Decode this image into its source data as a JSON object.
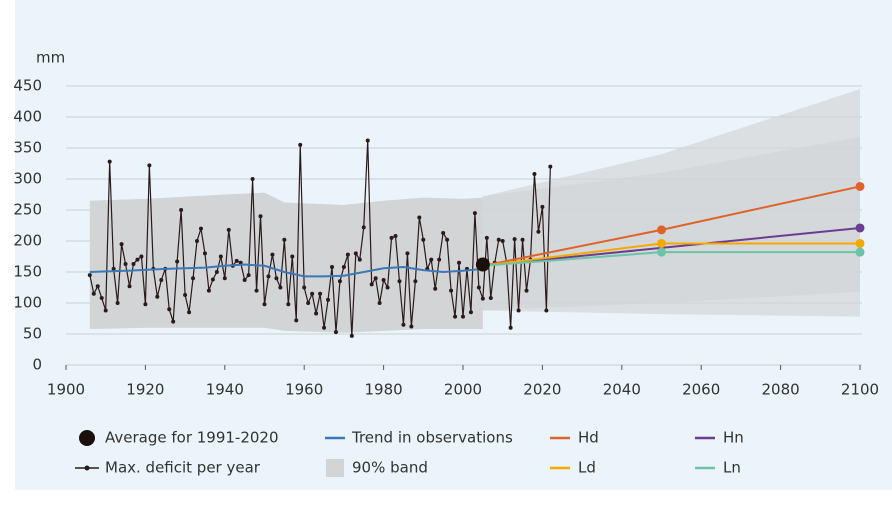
{
  "chart_data": {
    "type": "line",
    "y_label": "mm",
    "xlim": [
      1900,
      2100
    ],
    "xticks": [
      1900,
      1920,
      1940,
      1960,
      1980,
      2000,
      2020,
      2040,
      2060,
      2080,
      2100
    ],
    "ylim": [
      0,
      450
    ],
    "yticks": [
      0,
      50,
      100,
      150,
      200,
      250,
      300,
      350,
      400,
      450
    ],
    "grid": true,
    "band": {
      "name": "90% band",
      "color": "#d2d4d6",
      "pieces": [
        {
          "x": [
            1906,
            1920,
            1940,
            1950,
            1955,
            1970,
            1980,
            1990,
            2000,
            2005
          ],
          "lower": [
            58,
            60,
            60,
            60,
            55,
            52,
            55,
            58,
            58,
            58
          ],
          "upper": [
            265,
            268,
            275,
            278,
            262,
            258,
            265,
            270,
            268,
            270
          ]
        },
        {
          "x": [
            2005,
            2050,
            2100
          ],
          "lower": [
            88,
            82,
            78
          ],
          "upper": [
            272,
            340,
            445
          ]
        },
        {
          "x": [
            2005,
            2050,
            2100
          ],
          "lower": [
            88,
            100,
            118
          ],
          "upper": [
            272,
            310,
            368
          ]
        }
      ]
    },
    "series": [
      {
        "name": "Max. deficit per year",
        "color": "#2a1a1a",
        "markers": "all",
        "x": [
          1906,
          1907,
          1908,
          1909,
          1910,
          1911,
          1912,
          1913,
          1914,
          1915,
          1916,
          1917,
          1918,
          1919,
          1920,
          1921,
          1922,
          1923,
          1924,
          1925,
          1926,
          1927,
          1928,
          1929,
          1930,
          1931,
          1932,
          1933,
          1934,
          1935,
          1936,
          1937,
          1938,
          1939,
          1940,
          1941,
          1942,
          1943,
          1944,
          1945,
          1946,
          1947,
          1948,
          1949,
          1950,
          1951,
          1952,
          1953,
          1954,
          1955,
          1956,
          1957,
          1958,
          1959,
          1960,
          1961,
          1962,
          1963,
          1964,
          1965,
          1966,
          1967,
          1968,
          1969,
          1970,
          1971,
          1972,
          1973,
          1974,
          1975,
          1976,
          1977,
          1978,
          1979,
          1980,
          1981,
          1982,
          1983,
          1984,
          1985,
          1986,
          1987,
          1988,
          1989,
          1990,
          1991,
          1992,
          1993,
          1994,
          1995,
          1996,
          1997,
          1998,
          1999,
          2000,
          2001,
          2002,
          2003,
          2004,
          2005,
          2006,
          2007,
          2008,
          2009,
          2010,
          2011,
          2012,
          2013,
          2014,
          2015,
          2016,
          2017,
          2018,
          2019,
          2020,
          2021,
          2022
        ],
        "values": [
          145,
          115,
          127,
          108,
          88,
          328,
          155,
          100,
          195,
          163,
          127,
          163,
          170,
          175,
          98,
          322,
          155,
          110,
          137,
          155,
          90,
          70,
          167,
          250,
          113,
          85,
          140,
          200,
          220,
          180,
          120,
          138,
          150,
          175,
          140,
          218,
          160,
          168,
          165,
          137,
          145,
          300,
          120,
          240,
          98,
          143,
          178,
          140,
          125,
          202,
          98,
          175,
          72,
          355,
          125,
          100,
          115,
          83,
          115,
          60,
          105,
          158,
          53,
          135,
          158,
          178,
          47,
          180,
          170,
          222,
          362,
          130,
          140,
          100,
          137,
          125,
          205,
          208,
          135,
          65,
          180,
          62,
          135,
          238,
          202,
          155,
          170,
          123,
          170,
          213,
          202,
          120,
          78,
          165,
          78,
          155,
          85,
          245,
          125,
          107,
          205,
          108,
          165,
          202,
          200,
          165,
          60,
          203,
          88,
          202,
          120,
          170,
          308,
          215,
          255,
          88,
          320
        ]
      },
      {
        "name": "Trend in observations",
        "color": "#3b78b6",
        "markers": "none",
        "x": [
          1906,
          1915,
          1925,
          1935,
          1940,
          1945,
          1950,
          1955,
          1960,
          1965,
          1970,
          1975,
          1980,
          1985,
          1990,
          1995,
          2000,
          2005
        ],
        "values": [
          150,
          152,
          155,
          157,
          160,
          162,
          160,
          150,
          143,
          143,
          144,
          150,
          156,
          158,
          153,
          150,
          152,
          155
        ]
      },
      {
        "name": "Hd",
        "color": "#e0622a",
        "markers": "end",
        "x": [
          2005,
          2050,
          2100
        ],
        "values": [
          160,
          218,
          288
        ]
      },
      {
        "name": "Hn",
        "color": "#6b3d90",
        "markers": "end",
        "x": [
          2005,
          2100
        ],
        "values": [
          160,
          221
        ]
      },
      {
        "name": "Ld",
        "color": "#f5a800",
        "markers": "end",
        "x": [
          2005,
          2050,
          2100
        ],
        "values": [
          160,
          196,
          196
        ]
      },
      {
        "name": "Ln",
        "color": "#6cc3a6",
        "markers": "end",
        "x": [
          2005,
          2050,
          2100
        ],
        "values": [
          160,
          182,
          182
        ]
      }
    ],
    "average": {
      "name": "Average for 1991-2020",
      "color": "#1a0f0a",
      "x": 2005,
      "value": 162
    }
  }
}
